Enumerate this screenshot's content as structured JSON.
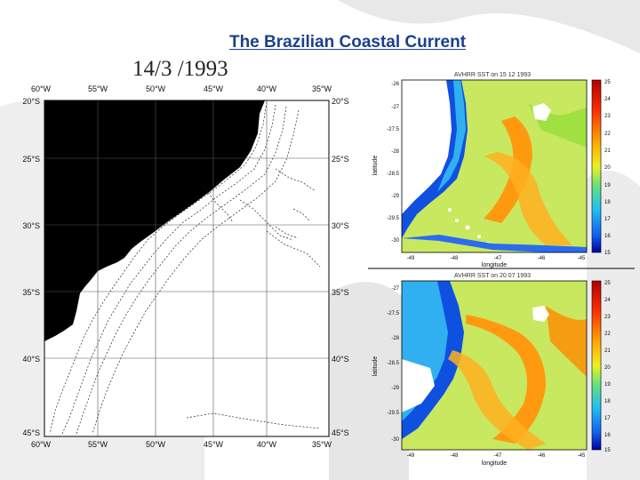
{
  "slide": {
    "title": "The Brazilian Coastal Current",
    "date": "14/3 /1993"
  },
  "map": {
    "lon_labels": [
      "60°W",
      "55°W",
      "50°W",
      "45°W",
      "40°W",
      "35°W"
    ],
    "lat_labels_left": [
      "20°S",
      "25°S",
      "30°S",
      "35°S",
      "40°S",
      "45°S"
    ],
    "lat_labels_right": [
      "20°S",
      "25°S",
      "30°S",
      "35°S",
      "40°S",
      "45°S"
    ],
    "land_color": "#000000",
    "ocean_color": "#ffffff"
  },
  "sst_top": {
    "title": "AVHRR SST on 15 12 1993",
    "ylabel": "latitude",
    "xlabel": "longitude",
    "y_ticks": [
      "-26",
      "-27",
      "-27.5",
      "-28",
      "-28.5",
      "-29",
      "-29.5",
      "-30"
    ],
    "x_ticks": [
      "-49",
      "-48",
      "-47",
      "-46",
      "-45"
    ],
    "colorbar_ticks": [
      "25",
      "24",
      "23",
      "22",
      "21",
      "20",
      "19",
      "18",
      "17",
      "16",
      "15"
    ]
  },
  "sst_bottom": {
    "title": "AVHRR SST on 20 07 1993",
    "ylabel": "latitude",
    "xlabel": "longitude",
    "y_ticks": [
      "-27",
      "-27.5",
      "-28",
      "-28.5",
      "-29",
      "-29.5",
      "-30"
    ],
    "x_ticks": [
      "-49",
      "-48",
      "-47",
      "-46",
      "-45"
    ],
    "colorbar_ticks": [
      "25",
      "24",
      "23",
      "22",
      "21",
      "20",
      "19",
      "18",
      "17",
      "16",
      "15"
    ]
  }
}
